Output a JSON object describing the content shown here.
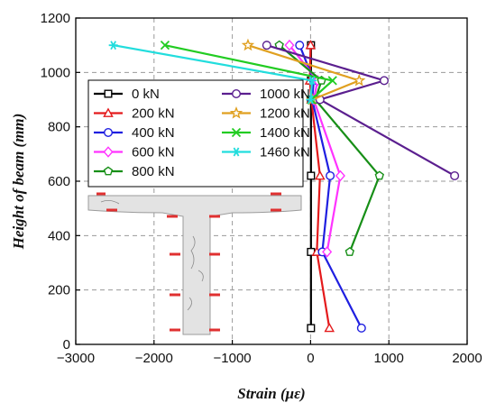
{
  "chart_data": {
    "type": "line",
    "xlabel": "Strain (με)",
    "ylabel": "Height of beam (mm)",
    "xlim": [
      -3000,
      2000
    ],
    "ylim": [
      0,
      1200
    ],
    "xticks": [
      -3000,
      -2000,
      -1000,
      0,
      1000,
      2000
    ],
    "yticks": [
      0,
      200,
      400,
      600,
      800,
      1000,
      1200
    ],
    "grid": true,
    "legend_position": "top-left",
    "heights": [
      60,
      340,
      620,
      900,
      970,
      1100
    ],
    "series": [
      {
        "name": "0 kN",
        "color": "#000000",
        "marker": "square",
        "x": [
          5,
          5,
          5,
          5,
          5,
          5
        ]
      },
      {
        "name": "200 kN",
        "color": "#e41a1c",
        "marker": "triangle",
        "x": [
          240,
          80,
          120,
          10,
          -10,
          0
        ]
      },
      {
        "name": "400 kN",
        "color": "#1f1fe0",
        "marker": "circle",
        "x": [
          650,
          150,
          250,
          20,
          40,
          -140
        ]
      },
      {
        "name": "600 kN",
        "color": "#ff33ff",
        "marker": "diamond",
        "x": [
          null,
          210,
          380,
          40,
          90,
          -270
        ]
      },
      {
        "name": "800 kN",
        "color": "#178f17",
        "marker": "pentagon",
        "x": [
          null,
          500,
          880,
          60,
          140,
          -400
        ]
      },
      {
        "name": "1000 kN",
        "color": "#5b1f8f",
        "marker": "circle",
        "x": [
          null,
          null,
          1840,
          120,
          940,
          -560
        ]
      },
      {
        "name": "1200 kN",
        "color": "#e0a020",
        "marker": "star",
        "x": [
          null,
          null,
          null,
          20,
          620,
          -800
        ]
      },
      {
        "name": "1400 kN",
        "color": "#22cc22",
        "marker": "x",
        "x": [
          null,
          null,
          null,
          10,
          280,
          -1860
        ]
      },
      {
        "name": "1460 kN",
        "color": "#22dddd",
        "marker": "asterisk",
        "x": [
          null,
          null,
          null,
          0,
          20,
          -2520
        ]
      }
    ]
  }
}
